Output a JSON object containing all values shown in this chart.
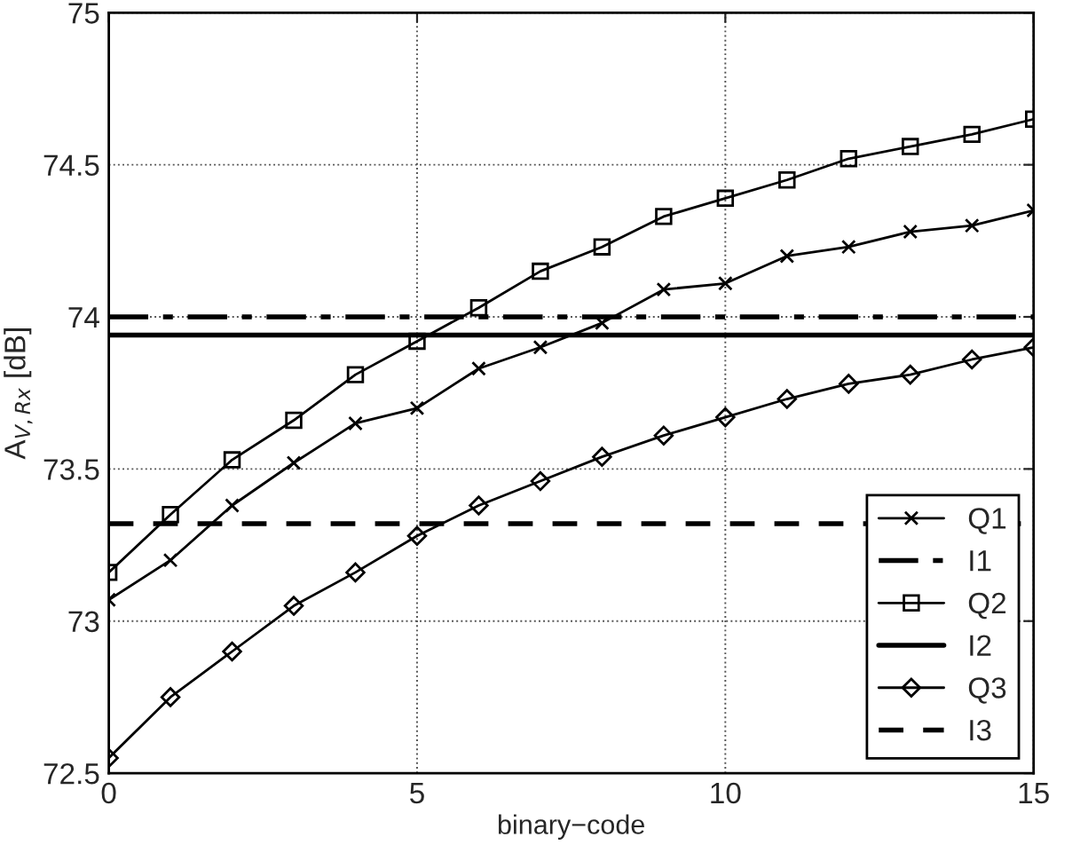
{
  "chart_data": {
    "type": "line",
    "xlabel": "binary−code",
    "ylabel": "A$_{V,Rx}$ [dB]",
    "x": [
      0,
      1,
      2,
      3,
      4,
      5,
      6,
      7,
      8,
      9,
      10,
      11,
      12,
      13,
      14,
      15
    ],
    "xlim": [
      0,
      15
    ],
    "xticks": [
      0,
      5,
      10,
      15
    ],
    "ylim": [
      72.5,
      75
    ],
    "yticks": [
      72.5,
      73,
      73.5,
      74,
      74.5,
      75
    ],
    "grid": true,
    "legend": "bottom right",
    "series": [
      {
        "name": "Q1",
        "color": "#000000",
        "marker": "cross",
        "values": [
          73.07,
          73.2,
          73.38,
          73.52,
          73.65,
          73.7,
          73.83,
          73.9,
          73.98,
          74.09,
          74.11,
          74.2,
          74.23,
          74.28,
          74.3,
          74.35
        ]
      },
      {
        "name": "Q2",
        "color": "#000000",
        "marker": "square",
        "values": [
          73.16,
          73.35,
          73.53,
          73.66,
          73.81,
          73.92,
          74.03,
          74.15,
          74.23,
          74.33,
          74.39,
          74.45,
          74.52,
          74.56,
          74.6,
          74.65
        ]
      },
      {
        "name": "Q3",
        "color": "#000000",
        "marker": "diamond",
        "values": [
          72.55,
          72.75,
          72.9,
          73.05,
          73.16,
          73.28,
          73.38,
          73.46,
          73.54,
          73.61,
          73.67,
          73.73,
          73.78,
          73.81,
          73.86,
          73.9
        ]
      }
    ],
    "ref_lines": [
      {
        "axis": "y",
        "value": 74.0,
        "label": "I1",
        "color": "#000000",
        "line_style": "dashdot"
      },
      {
        "axis": "y",
        "value": 73.94,
        "label": "I2",
        "color": "#000000",
        "line_style": "solid"
      },
      {
        "axis": "y",
        "value": 73.32,
        "label": "I3",
        "color": "#000000",
        "line_style": "dashed"
      }
    ]
  }
}
